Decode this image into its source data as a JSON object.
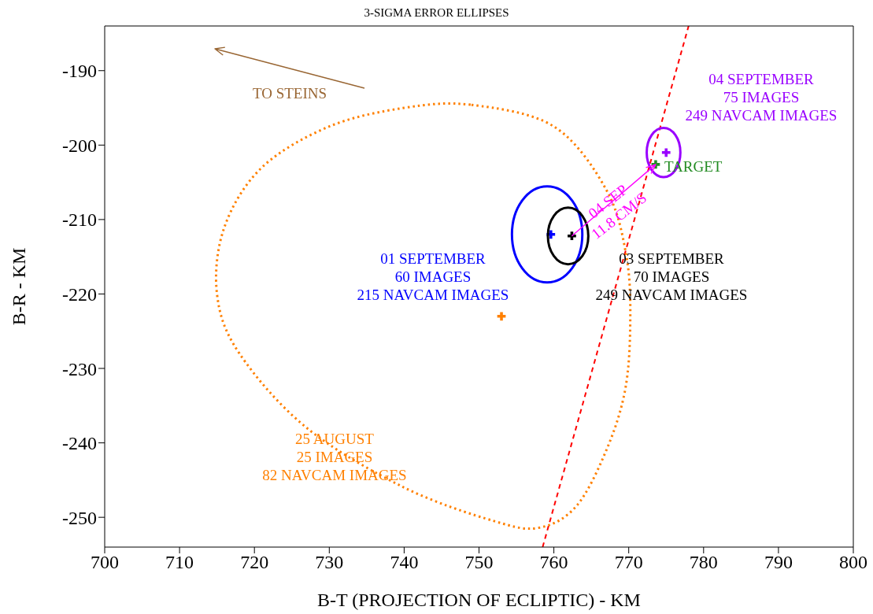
{
  "chart_data": {
    "type": "line",
    "title": "3-SIGMA ERROR ELLIPSES",
    "xlabel": "B-T (PROJECTION OF ECLIPTIC) - KM",
    "ylabel": "B-R - KM",
    "xlim": [
      700,
      800
    ],
    "xticks": [
      700,
      710,
      720,
      730,
      740,
      750,
      760,
      770,
      780,
      790,
      800
    ],
    "ylim": [
      -254,
      -184
    ],
    "yticks": [
      -190,
      -200,
      -210,
      -220,
      -230,
      -240,
      -250
    ],
    "grid": false,
    "marker": "none",
    "series": [
      {
        "type": "scatter",
        "marker": "cross",
        "color": "#ff8000",
        "x": [
          753
        ],
        "values": [
          -223
        ]
      },
      {
        "type": "scatter",
        "marker": "cross",
        "color": "#0000ff",
        "x": [
          759.6
        ],
        "values": [
          -212
        ]
      },
      {
        "type": "scatter",
        "marker": "cross",
        "color": "#000000",
        "x": [
          762.4
        ],
        "values": [
          -212.2
        ]
      },
      {
        "type": "scatter",
        "marker": "cross",
        "color": "#9900ff",
        "x": [
          775
        ],
        "values": [
          -201
        ]
      },
      {
        "type": "scatter",
        "marker": "cross",
        "color": "#228b22",
        "x": [
          773.6
        ],
        "values": [
          -202.6
        ]
      },
      {
        "color": "#ff0000",
        "line_style": "dashed",
        "x": [
          758.5,
          778
        ],
        "values": [
          -254,
          -184
        ]
      }
    ],
    "annotations": [
      "25 AUGUST\n25 IMAGES\n82 NAVCAM IMAGES",
      "01 SEPTEMBER\n60 IMAGES\n215 NAVCAM IMAGES",
      "03 SEPTEMBER\n70 IMAGES\n249 NAVCAM IMAGES",
      "04 SEPTEMBER\n75 IMAGES\n249 NAVCAM IMAGES",
      "TARGET",
      {
        "text": "04 SEP\n11.8 CM/S",
        "x": 773.6,
        "y": -202.6
      },
      "TO STEINS"
    ]
  }
}
